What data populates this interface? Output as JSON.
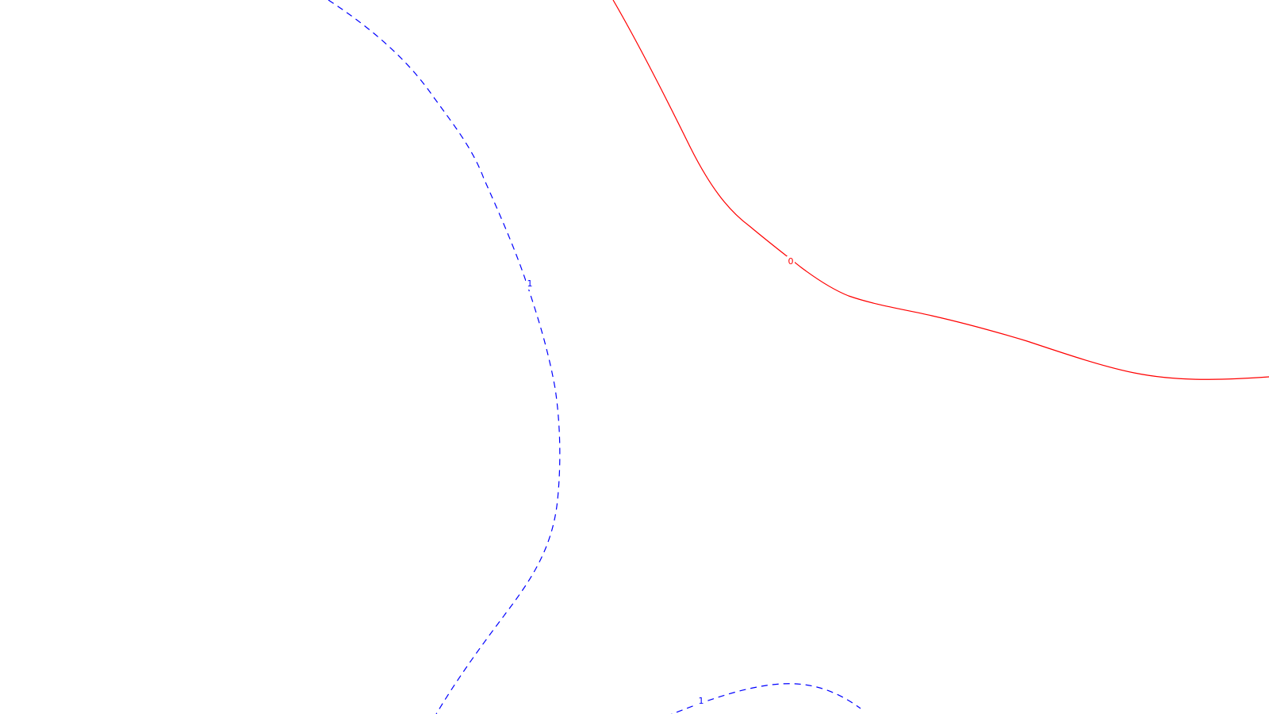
{
  "chart_data": {
    "type": "contour",
    "title": "",
    "xlabel": "",
    "ylabel": "",
    "grid": false,
    "legend": "none",
    "contours": [
      {
        "level": "0",
        "color": "#ff0000",
        "style": "solid"
      },
      {
        "level": "1",
        "color": "#0000ff",
        "style": "dashed"
      },
      {
        "level": "1",
        "color": "#0000ff",
        "style": "dashed"
      }
    ]
  }
}
